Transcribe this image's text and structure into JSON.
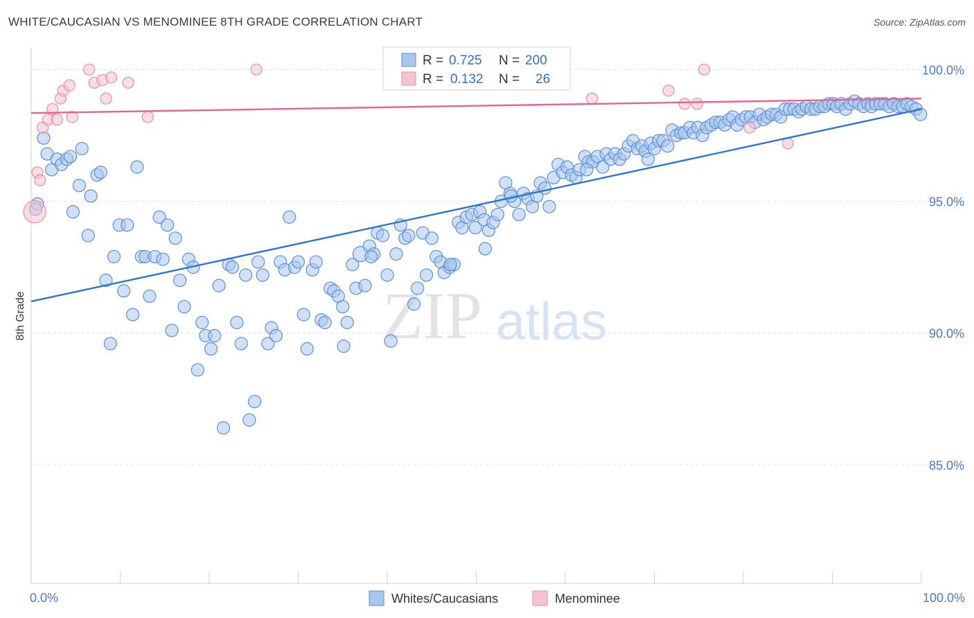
{
  "header": {
    "title": "WHITE/CAUCASIAN VS MENOMINEE 8TH GRADE CORRELATION CHART",
    "source": "Source: ZipAtlas.com"
  },
  "watermark": {
    "zip": "ZIP",
    "atlas": "atlas"
  },
  "colors": {
    "blue_fill": "#a9c6ef",
    "blue_stroke": "#5b8fd6",
    "blue_line": "#2f74d0",
    "pink_fill": "#f6c3d1",
    "pink_stroke": "#e88ca8",
    "pink_line": "#e9628a",
    "axis_label": "#4a7bd0",
    "grid": "#dddddd"
  },
  "legend": {
    "rows": [
      {
        "r_label": "R =",
        "r_value": "0.725",
        "n_label": "N =",
        "n_value": "200"
      },
      {
        "r_label": "R =",
        "r_value": "0.132",
        "n_label": "N =",
        "n_value": "26"
      }
    ]
  },
  "bottom_legend": {
    "items": [
      {
        "label": "Whites/Caucasians"
      },
      {
        "label": "Menominee"
      }
    ]
  },
  "chart_data": {
    "type": "scatter",
    "title": "WHITE/CAUCASIAN VS MENOMINEE 8TH GRADE CORRELATION CHART",
    "xlabel": "",
    "ylabel": "8th Grade",
    "xlim": [
      0,
      100
    ],
    "ylim": [
      80.5,
      100.8
    ],
    "x_tick_labels": [
      "0.0%",
      "100.0%"
    ],
    "y_ticks": [
      85,
      90,
      95,
      100
    ],
    "y_tick_labels": [
      "85.0%",
      "90.0%",
      "95.0%",
      "100.0%"
    ],
    "series": [
      {
        "name": "Whites/Caucasians",
        "r": 0.725,
        "n": 200,
        "trend": {
          "x": [
            0,
            100
          ],
          "y": [
            91.2,
            98.5
          ]
        },
        "points": [
          [
            0.7,
            94.9
          ],
          [
            0.5,
            94.7
          ],
          [
            1.4,
            97.4
          ],
          [
            1.8,
            96.8
          ],
          [
            2.3,
            96.2
          ],
          [
            2.9,
            96.6
          ],
          [
            3.4,
            96.4
          ],
          [
            4.0,
            96.6
          ],
          [
            4.4,
            96.7
          ],
          [
            4.7,
            94.6
          ],
          [
            5.4,
            95.6
          ],
          [
            5.7,
            97.0
          ],
          [
            6.4,
            93.7
          ],
          [
            6.7,
            95.2
          ],
          [
            7.4,
            96.0
          ],
          [
            7.8,
            96.1
          ],
          [
            8.4,
            92.0
          ],
          [
            8.9,
            89.6
          ],
          [
            9.3,
            92.9
          ],
          [
            9.9,
            94.1
          ],
          [
            10.4,
            91.6
          ],
          [
            10.8,
            94.1
          ],
          [
            11.4,
            90.7
          ],
          [
            11.9,
            96.3
          ],
          [
            12.4,
            92.9
          ],
          [
            12.8,
            92.9
          ],
          [
            13.3,
            91.4
          ],
          [
            13.9,
            92.9
          ],
          [
            14.4,
            94.4
          ],
          [
            14.8,
            92.8
          ],
          [
            15.3,
            94.1
          ],
          [
            15.8,
            90.1
          ],
          [
            16.2,
            93.6
          ],
          [
            16.7,
            92.0
          ],
          [
            17.2,
            91.0
          ],
          [
            17.7,
            92.8
          ],
          [
            18.2,
            92.5
          ],
          [
            18.7,
            88.6
          ],
          [
            19.2,
            90.4
          ],
          [
            19.6,
            89.9
          ],
          [
            20.2,
            89.4
          ],
          [
            20.6,
            89.9
          ],
          [
            21.1,
            91.8
          ],
          [
            21.6,
            86.4
          ],
          [
            22.2,
            92.6
          ],
          [
            22.6,
            92.5
          ],
          [
            23.1,
            90.4
          ],
          [
            23.6,
            89.6
          ],
          [
            24.1,
            92.2
          ],
          [
            24.5,
            86.7
          ],
          [
            25.1,
            87.4
          ],
          [
            25.5,
            92.7
          ],
          [
            26.0,
            92.2
          ],
          [
            26.6,
            89.6
          ],
          [
            27.0,
            90.2
          ],
          [
            27.5,
            89.9
          ],
          [
            28.0,
            92.7
          ],
          [
            28.5,
            92.4
          ],
          [
            29.0,
            94.4
          ],
          [
            29.6,
            92.5
          ],
          [
            30.0,
            92.7
          ],
          [
            30.6,
            90.7
          ],
          [
            31.0,
            89.4
          ],
          [
            31.6,
            92.4
          ],
          [
            32.0,
            92.7
          ],
          [
            32.6,
            90.5
          ],
          [
            33.0,
            90.4
          ],
          [
            33.6,
            91.7
          ],
          [
            34.0,
            91.6
          ],
          [
            34.5,
            91.4
          ],
          [
            35.1,
            89.5
          ],
          [
            35.5,
            90.4
          ],
          [
            36.1,
            92.6
          ],
          [
            36.5,
            91.7
          ],
          [
            37.0,
            93.0
          ],
          [
            37.5,
            91.8
          ],
          [
            38.0,
            93.3
          ],
          [
            38.5,
            93.0
          ],
          [
            38.9,
            93.8
          ],
          [
            39.5,
            93.7
          ],
          [
            40.0,
            92.2
          ],
          [
            40.4,
            89.7
          ],
          [
            41.0,
            93.0
          ],
          [
            41.5,
            94.1
          ],
          [
            42.0,
            93.6
          ],
          [
            42.4,
            93.7
          ],
          [
            43.0,
            91.1
          ],
          [
            43.4,
            91.7
          ],
          [
            44.0,
            93.8
          ],
          [
            44.4,
            92.2
          ],
          [
            45.0,
            93.6
          ],
          [
            45.5,
            92.9
          ],
          [
            46.0,
            92.7
          ],
          [
            46.4,
            92.3
          ],
          [
            47.0,
            92.5
          ],
          [
            47.5,
            92.6
          ],
          [
            48.0,
            94.2
          ],
          [
            48.4,
            94.0
          ],
          [
            48.9,
            94.4
          ],
          [
            49.5,
            94.5
          ],
          [
            49.9,
            94.0
          ],
          [
            50.4,
            94.6
          ],
          [
            50.9,
            94.3
          ],
          [
            51.4,
            93.9
          ],
          [
            51.9,
            94.2
          ],
          [
            52.4,
            94.5
          ],
          [
            52.8,
            95.0
          ],
          [
            53.3,
            95.7
          ],
          [
            53.8,
            95.3
          ],
          [
            54.3,
            95.0
          ],
          [
            54.8,
            94.5
          ],
          [
            55.3,
            95.3
          ],
          [
            55.8,
            95.1
          ],
          [
            56.3,
            94.8
          ],
          [
            56.8,
            95.2
          ],
          [
            57.2,
            95.7
          ],
          [
            57.7,
            95.5
          ],
          [
            58.2,
            94.8
          ],
          [
            58.7,
            95.9
          ],
          [
            59.2,
            96.4
          ],
          [
            59.7,
            96.1
          ],
          [
            60.2,
            96.3
          ],
          [
            60.7,
            96.0
          ],
          [
            61.2,
            95.9
          ],
          [
            61.6,
            96.2
          ],
          [
            62.2,
            96.7
          ],
          [
            62.6,
            96.5
          ],
          [
            63.1,
            96.5
          ],
          [
            63.6,
            96.7
          ],
          [
            64.2,
            96.3
          ],
          [
            64.6,
            96.8
          ],
          [
            65.1,
            96.6
          ],
          [
            65.6,
            96.8
          ],
          [
            66.1,
            96.6
          ],
          [
            66.6,
            96.8
          ],
          [
            67.1,
            97.1
          ],
          [
            67.6,
            97.3
          ],
          [
            68.1,
            97.0
          ],
          [
            68.6,
            97.1
          ],
          [
            69.0,
            96.9
          ],
          [
            69.6,
            97.2
          ],
          [
            70.0,
            97.0
          ],
          [
            70.5,
            97.3
          ],
          [
            71.0,
            97.3
          ],
          [
            71.5,
            97.1
          ],
          [
            72.0,
            97.7
          ],
          [
            72.5,
            97.5
          ],
          [
            73.0,
            97.6
          ],
          [
            73.4,
            97.6
          ],
          [
            74.0,
            97.8
          ],
          [
            74.4,
            97.6
          ],
          [
            74.9,
            97.8
          ],
          [
            75.4,
            97.5
          ],
          [
            75.9,
            97.8
          ],
          [
            76.4,
            97.9
          ],
          [
            76.9,
            98.0
          ],
          [
            77.4,
            98.0
          ],
          [
            77.9,
            97.9
          ],
          [
            78.4,
            98.1
          ],
          [
            78.8,
            98.2
          ],
          [
            79.3,
            97.9
          ],
          [
            79.8,
            98.1
          ],
          [
            80.3,
            98.2
          ],
          [
            80.8,
            98.2
          ],
          [
            81.3,
            98.0
          ],
          [
            81.8,
            98.3
          ],
          [
            82.3,
            98.1
          ],
          [
            82.7,
            98.2
          ],
          [
            83.2,
            98.3
          ],
          [
            83.7,
            98.3
          ],
          [
            84.2,
            98.2
          ],
          [
            84.7,
            98.5
          ],
          [
            85.2,
            98.5
          ],
          [
            85.7,
            98.5
          ],
          [
            86.2,
            98.4
          ],
          [
            86.6,
            98.5
          ],
          [
            87.1,
            98.6
          ],
          [
            87.6,
            98.5
          ],
          [
            88.1,
            98.5
          ],
          [
            88.6,
            98.6
          ],
          [
            89.1,
            98.6
          ],
          [
            89.6,
            98.7
          ],
          [
            90.1,
            98.7
          ],
          [
            90.5,
            98.6
          ],
          [
            91.0,
            98.7
          ],
          [
            91.5,
            98.5
          ],
          [
            92.0,
            98.7
          ],
          [
            92.5,
            98.8
          ],
          [
            93.0,
            98.7
          ],
          [
            93.5,
            98.6
          ],
          [
            94.0,
            98.7
          ],
          [
            94.4,
            98.6
          ],
          [
            94.9,
            98.7
          ],
          [
            95.4,
            98.7
          ],
          [
            95.9,
            98.7
          ],
          [
            96.4,
            98.6
          ],
          [
            96.9,
            98.7
          ],
          [
            97.4,
            98.6
          ],
          [
            97.9,
            98.6
          ],
          [
            98.4,
            98.7
          ],
          [
            98.9,
            98.6
          ],
          [
            99.4,
            98.5
          ],
          [
            99.9,
            98.3
          ],
          [
            51.0,
            93.2
          ],
          [
            62.4,
            96.2
          ],
          [
            69.3,
            96.6
          ],
          [
            38.2,
            92.9
          ],
          [
            35.0,
            91.0
          ],
          [
            53.9,
            95.2
          ],
          [
            47.1,
            92.6
          ]
        ]
      },
      {
        "name": "Menominee",
        "r": 0.132,
        "n": 26,
        "trend": {
          "x": [
            0,
            100
          ],
          "y": [
            98.35,
            98.9
          ]
        },
        "points": [
          [
            0.4,
            94.6
          ],
          [
            0.7,
            96.1
          ],
          [
            1.0,
            95.8
          ],
          [
            1.3,
            97.8
          ],
          [
            1.9,
            98.1
          ],
          [
            2.4,
            98.5
          ],
          [
            2.9,
            98.1
          ],
          [
            3.3,
            98.9
          ],
          [
            3.6,
            99.2
          ],
          [
            4.3,
            99.4
          ],
          [
            4.6,
            98.2
          ],
          [
            6.5,
            100.0
          ],
          [
            7.1,
            99.5
          ],
          [
            8.0,
            99.6
          ],
          [
            8.4,
            98.9
          ],
          [
            9.0,
            99.7
          ],
          [
            10.9,
            99.5
          ],
          [
            13.1,
            98.2
          ],
          [
            25.3,
            100.0
          ],
          [
            63.0,
            98.9
          ],
          [
            71.6,
            99.2
          ],
          [
            73.4,
            98.7
          ],
          [
            74.8,
            98.7
          ],
          [
            75.6,
            100.0
          ],
          [
            80.7,
            97.8
          ],
          [
            85.0,
            97.2
          ]
        ]
      }
    ]
  }
}
